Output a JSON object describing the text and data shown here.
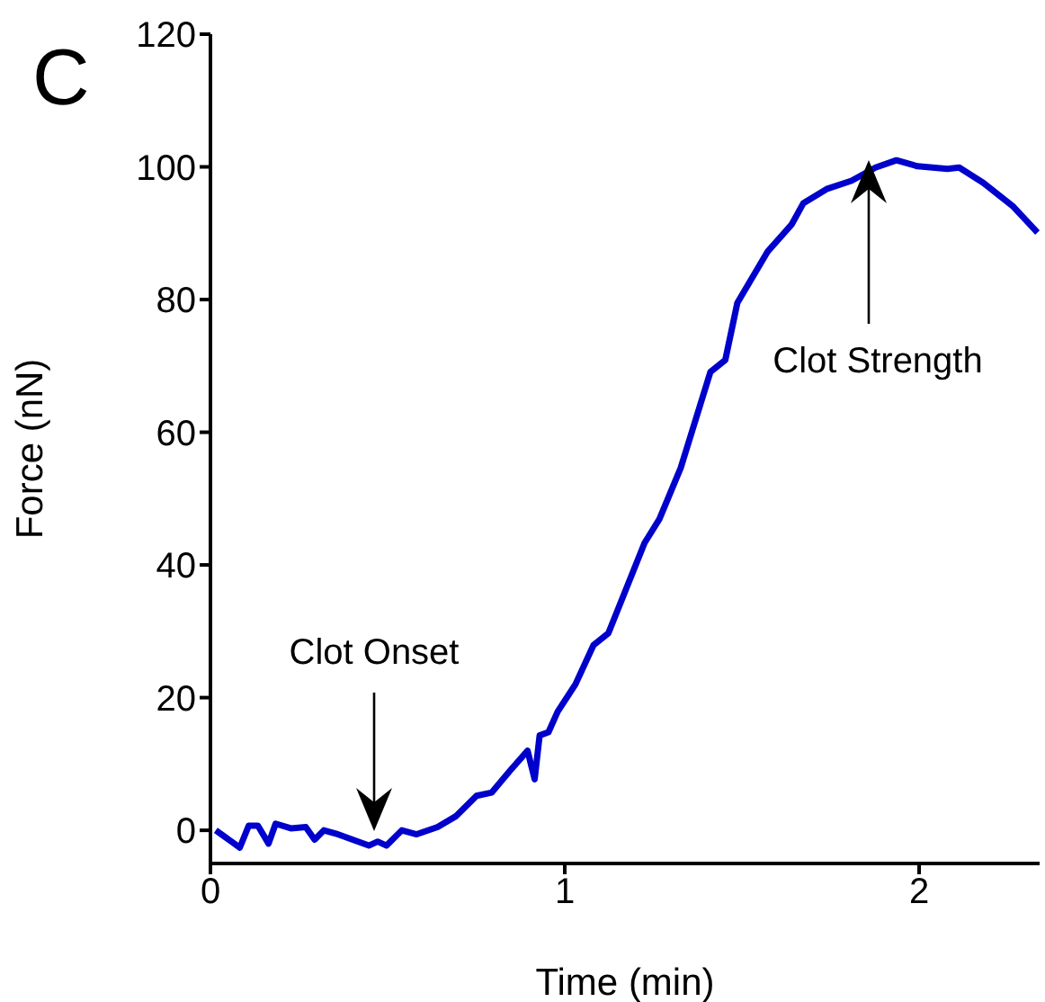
{
  "chart_data": {
    "type": "line",
    "xlabel": "Time (min)",
    "ylabel": "Force (nN)",
    "x": [
      0.015,
      0.083,
      0.108,
      0.134,
      0.164,
      0.184,
      0.227,
      0.269,
      0.294,
      0.32,
      0.354,
      0.447,
      0.472,
      0.497,
      0.54,
      0.582,
      0.641,
      0.692,
      0.751,
      0.794,
      0.844,
      0.895,
      0.915,
      0.929,
      0.954,
      0.98,
      1.03,
      1.081,
      1.123,
      1.225,
      1.267,
      1.327,
      1.411,
      1.453,
      1.487,
      1.572,
      1.64,
      1.673,
      1.741,
      1.809,
      1.877,
      1.936,
      1.995,
      2.08,
      2.113,
      2.181,
      2.266,
      2.334
    ],
    "series": [
      {
        "color": "#0000cc",
        "values": [
          0,
          -2.6,
          0.7,
          0.7,
          -2,
          1,
          0.3,
          0.5,
          -1.4,
          0,
          -0.5,
          -2.3,
          -1.7,
          -2.3,
          0,
          -0.6,
          0.5,
          2.1,
          5.2,
          5.7,
          8.9,
          12,
          7.7,
          14.3,
          14.8,
          17.9,
          22,
          27.9,
          29.7,
          43.3,
          46.9,
          54.6,
          69.1,
          70.9,
          79.5,
          87.2,
          91.3,
          94.5,
          96.7,
          97.9,
          99.9,
          101,
          100.1,
          99.7,
          99.9,
          97.6,
          94,
          90.1
        ]
      }
    ],
    "xlim": [
      0,
      2.34
    ],
    "ylim": [
      -5,
      120
    ],
    "xticks": [
      0,
      1,
      2
    ],
    "yticks": [
      0,
      20,
      40,
      60,
      80,
      100,
      120
    ],
    "marker": "none",
    "line_style": "solid",
    "grid": false,
    "legend": false,
    "annotations": [
      "C",
      "Clot Onset",
      "Clot Strength"
    ]
  }
}
